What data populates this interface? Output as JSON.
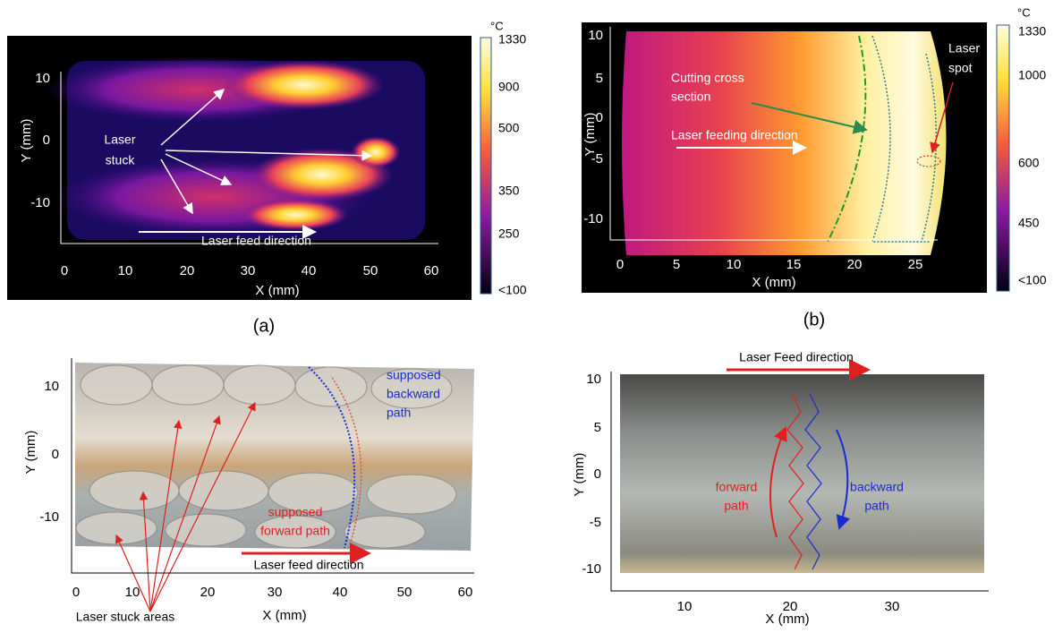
{
  "panels": [
    {
      "label": "(a)",
      "xlabel": "X (mm)",
      "ylabel": "Y (mm)",
      "xticks": [
        "0",
        "10",
        "20",
        "30",
        "40",
        "50",
        "60"
      ],
      "yticks": [
        "10",
        "0",
        "-10"
      ],
      "annotations": [
        "Laser",
        "stuck",
        "Laser feed direction"
      ],
      "colorbar": {
        "unit": "°C",
        "ticks": [
          "1330",
          "900",
          "500",
          "350",
          "250",
          "<100"
        ]
      }
    },
    {
      "label": "(b)",
      "xlabel": "X (mm)",
      "ylabel": "Y (mm)",
      "xticks": [
        "0",
        "5",
        "10",
        "15",
        "20",
        "25"
      ],
      "yticks": [
        "10",
        "5",
        "0",
        "-5",
        "-10"
      ],
      "annotations": [
        "Cutting cross",
        "section",
        "Laser feeding direction",
        "Laser",
        "spot"
      ],
      "colorbar": {
        "unit": "°C",
        "ticks": [
          "1330",
          "1000",
          "600",
          "450",
          "<100"
        ]
      }
    },
    {
      "xlabel": "X (mm)",
      "ylabel": "Y (mm)",
      "xticks": [
        "0",
        "10",
        "20",
        "30",
        "40",
        "50",
        "60"
      ],
      "yticks": [
        "10",
        "0",
        "-10"
      ],
      "annotations": [
        "supposed",
        "backward",
        "path",
        "supposed",
        "forward path",
        "Laser feed direction",
        "Laser stuck areas"
      ]
    },
    {
      "xlabel": "X (mm)",
      "ylabel": "Y (mm)",
      "xticks": [
        "10",
        "20",
        "30"
      ],
      "yticks": [
        "10",
        "5",
        "0",
        "-5",
        "-10"
      ],
      "annotations": [
        "Laser Feed direction",
        "forward",
        "path",
        "backward",
        "path"
      ]
    }
  ]
}
